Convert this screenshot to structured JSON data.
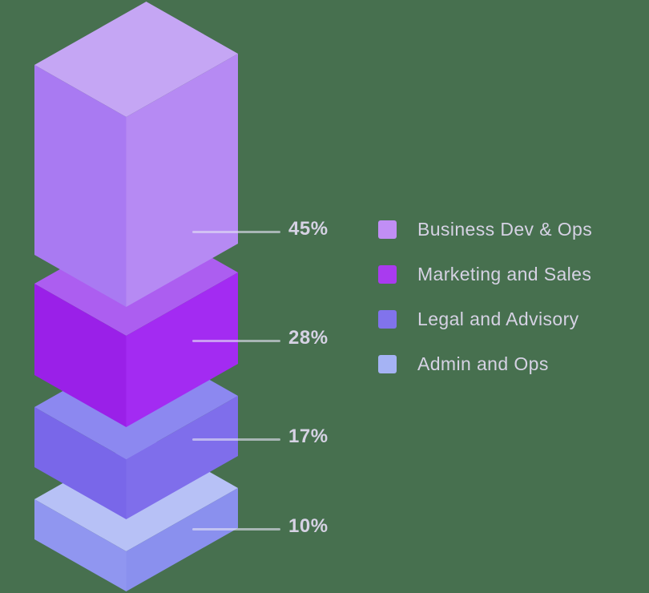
{
  "background_color": "#47704F",
  "chart_data": {
    "type": "bar",
    "variant": "isometric-3d-stacked-blocks",
    "title": "",
    "categories": [
      "Business Dev & Ops",
      "Marketing and Sales",
      "Legal and Advisory",
      "Admin and Ops"
    ],
    "values": [
      45,
      28,
      17,
      10
    ],
    "unit": "%",
    "legend_position": "right",
    "label_color": "#D6D2E4",
    "tick_line_color": "rgba(228,226,244,0.62)",
    "blocks": [
      {
        "label": "Business Dev & Ops",
        "value": 45,
        "pct": "45%",
        "face_top": "#C5A6F4",
        "face_left": "#A97AF2",
        "face_right": "#B68AF3"
      },
      {
        "label": "Marketing and Sales",
        "value": 28,
        "pct": "28%",
        "face_top": "#AC5EF0",
        "face_left": "#9A20E8",
        "face_right": "#A32BF2"
      },
      {
        "label": "Legal and Advisory",
        "value": 17,
        "pct": "17%",
        "face_top": "#8C88F0",
        "face_left": "#7967E9",
        "face_right": "#7F6EEB"
      },
      {
        "label": "Admin and Ops",
        "value": 10,
        "pct": "10%",
        "face_top": "#B7C1F6",
        "face_left": "#9096F0",
        "face_right": "#8A90EE"
      }
    ],
    "legend": [
      {
        "label": "Business Dev & Ops",
        "color": "#C18EF5"
      },
      {
        "label": "Marketing and Sales",
        "color": "#A93BEF"
      },
      {
        "label": "Legal and Advisory",
        "color": "#8173EC"
      },
      {
        "label": "Admin and Ops",
        "color": "#A5B3F4"
      }
    ]
  }
}
